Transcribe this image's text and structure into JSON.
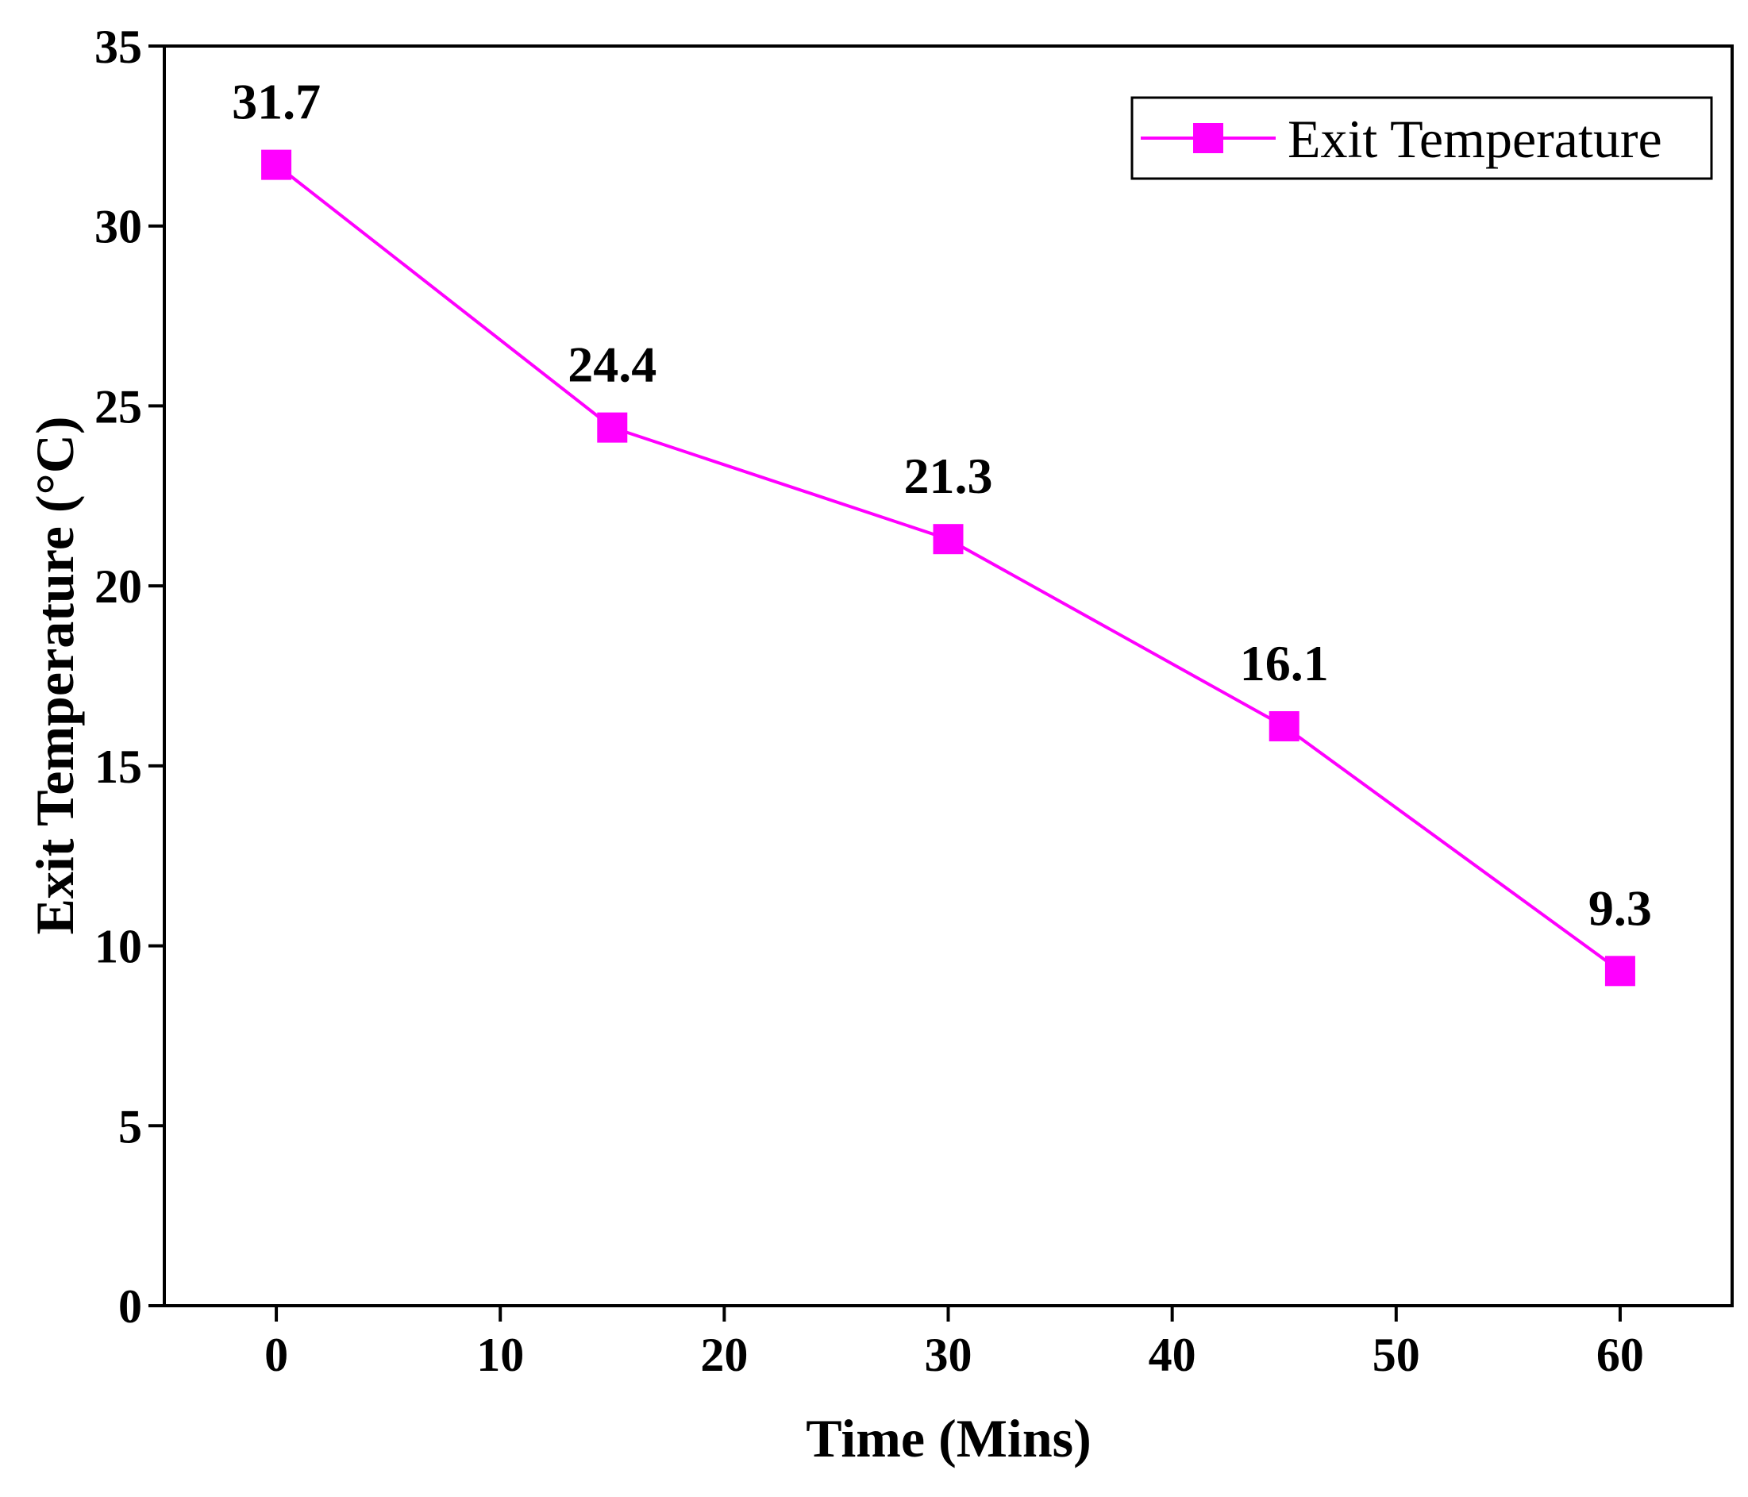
{
  "chart_data": {
    "type": "line",
    "title": "",
    "xlabel": "Time (Mins)",
    "ylabel": "Exit Temperature (°C)",
    "xlim": [
      -5,
      65
    ],
    "ylim": [
      0,
      35
    ],
    "xticks": [
      0,
      10,
      20,
      30,
      40,
      50,
      60
    ],
    "yticks": [
      0,
      5,
      10,
      15,
      20,
      25,
      30,
      35
    ],
    "grid": false,
    "legend_position": "top-right",
    "series": [
      {
        "name": "Exit Temperature",
        "color": "#ff00ff",
        "marker": "square",
        "x": [
          0,
          15,
          30,
          45,
          60
        ],
        "values": [
          31.7,
          24.4,
          21.3,
          16.1,
          9.3
        ],
        "labels": [
          "31.7",
          "24.4",
          "21.3",
          "16.1",
          "9.3"
        ]
      }
    ]
  }
}
